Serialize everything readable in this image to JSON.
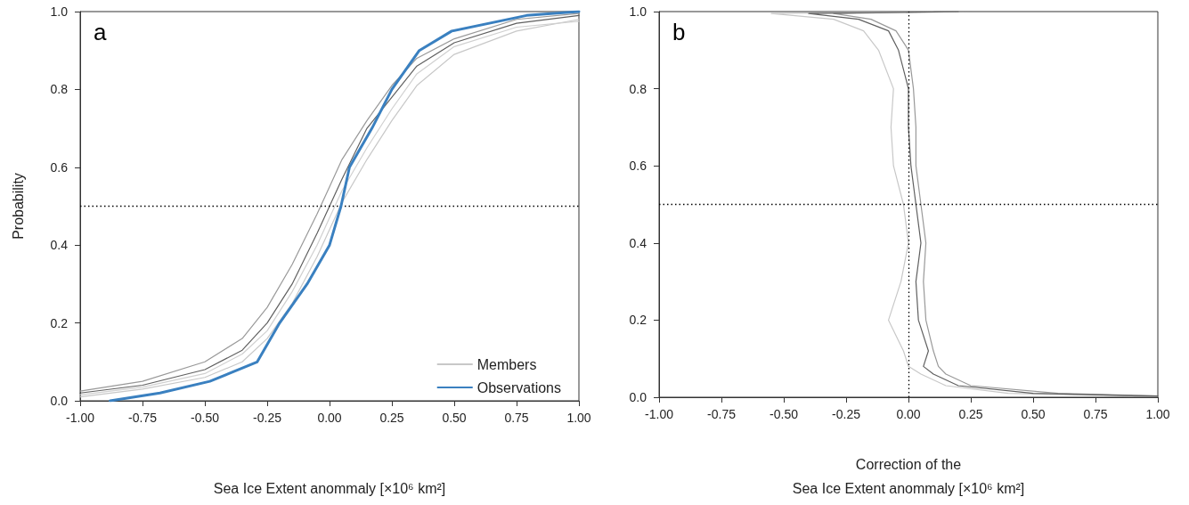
{
  "chart_data": [
    {
      "type": "line",
      "xlabel": "Sea Ice Extent anommaly [×10⁶ km²]",
      "ylabel": "Probability",
      "annotations": [
        "a"
      ],
      "legend": "bottom right",
      "grid": false,
      "marker": "none",
      "line_style": "solid",
      "xlim": [
        -1,
        1
      ],
      "xticks": [
        {
          "value": -1,
          "label": "-1.00"
        },
        {
          "value": -0.75,
          "label": "-0.75"
        },
        {
          "value": -0.5,
          "label": "-0.50"
        },
        {
          "value": -0.25,
          "label": "-0.25"
        },
        {
          "value": 0,
          "label": "0.00"
        },
        {
          "value": 0.25,
          "label": "0.25"
        },
        {
          "value": 0.5,
          "label": "0.50"
        },
        {
          "value": 0.75,
          "label": "0.75"
        },
        {
          "value": 1,
          "label": "1.00"
        }
      ],
      "ylim": [
        0,
        1
      ],
      "yticks": [
        {
          "value": 0,
          "label": "0.0"
        },
        {
          "value": 0.2,
          "label": "0.2"
        },
        {
          "value": 0.4,
          "label": "0.4"
        },
        {
          "value": 0.6,
          "label": "0.6"
        },
        {
          "value": 0.8,
          "label": "0.8"
        },
        {
          "value": 1,
          "label": "1.0"
        }
      ],
      "ref_lines": [
        {
          "axis": "y",
          "value": 0.5,
          "label": null,
          "color": "#000000",
          "line_style": "dotted"
        }
      ],
      "series": [
        {
          "name": "Members",
          "color": "#c8c8c8",
          "x": [
            -1,
            -0.75,
            -0.5,
            -0.35,
            -0.25,
            -0.15,
            -0.05,
            0,
            0.05,
            0.15,
            0.25,
            0.35,
            0.5,
            0.75,
            1
          ],
          "values": [
            0.01,
            0.03,
            0.06,
            0.1,
            0.16,
            0.25,
            0.37,
            0.44,
            0.51,
            0.62,
            0.72,
            0.81,
            0.89,
            0.95,
            0.98
          ]
        },
        {
          "color": "#d0d0d0",
          "x": [
            -1,
            -0.75,
            -0.5,
            -0.35,
            -0.25,
            -0.15,
            -0.05,
            0,
            0.05,
            0.15,
            0.25,
            0.35,
            0.5,
            0.75,
            1
          ],
          "values": [
            0.015,
            0.035,
            0.07,
            0.12,
            0.18,
            0.28,
            0.4,
            0.47,
            0.54,
            0.65,
            0.75,
            0.84,
            0.91,
            0.96,
            0.975
          ]
        },
        {
          "color": "#999999",
          "x": [
            -1,
            -0.75,
            -0.5,
            -0.35,
            -0.25,
            -0.15,
            -0.05,
            0,
            0.05,
            0.15,
            0.25,
            0.35,
            0.5,
            0.75,
            1
          ],
          "values": [
            0.025,
            0.05,
            0.1,
            0.16,
            0.24,
            0.35,
            0.48,
            0.55,
            0.62,
            0.72,
            0.81,
            0.88,
            0.93,
            0.98,
            0.995
          ]
        },
        {
          "color": "#606060",
          "x": [
            -1,
            -0.75,
            -0.5,
            -0.35,
            -0.25,
            -0.15,
            -0.05,
            0,
            0.05,
            0.15,
            0.25,
            0.35,
            0.5,
            0.75,
            1
          ],
          "values": [
            0.02,
            0.04,
            0.08,
            0.13,
            0.2,
            0.3,
            0.43,
            0.5,
            0.57,
            0.7,
            0.78,
            0.86,
            0.92,
            0.97,
            0.99
          ]
        },
        {
          "name": "Observations",
          "color": "#3a80c0",
          "x": [
            -0.88,
            -0.68,
            -0.48,
            -0.29,
            -0.2,
            -0.09,
            0,
            0.046,
            0.08,
            0.17,
            0.25,
            0.36,
            0.49,
            0.79,
            1
          ],
          "values": [
            0,
            0.02,
            0.05,
            0.1,
            0.2,
            0.3,
            0.4,
            0.5,
            0.6,
            0.7,
            0.8,
            0.9,
            0.95,
            0.99,
            1
          ]
        }
      ]
    },
    {
      "type": "line",
      "xlabel": "Correction of the\nSea Ice Extent anommaly [×10⁶ km²]",
      "annotations": [
        "b"
      ],
      "grid": false,
      "marker": "none",
      "line_style": "solid",
      "xlim": [
        -1,
        1
      ],
      "xticks": [
        {
          "value": -1,
          "label": "-1.00"
        },
        {
          "value": -0.75,
          "label": "-0.75"
        },
        {
          "value": -0.5,
          "label": "-0.50"
        },
        {
          "value": -0.25,
          "label": "-0.25"
        },
        {
          "value": 0,
          "label": "0.00"
        },
        {
          "value": 0.25,
          "label": "0.25"
        },
        {
          "value": 0.5,
          "label": "0.50"
        },
        {
          "value": 0.75,
          "label": "0.75"
        },
        {
          "value": 1,
          "label": "1.00"
        }
      ],
      "ylim": [
        0,
        1
      ],
      "yticks": [
        {
          "value": 0,
          "label": "0.0"
        },
        {
          "value": 0.2,
          "label": "0.2"
        },
        {
          "value": 0.4,
          "label": "0.4"
        },
        {
          "value": 0.6,
          "label": "0.6"
        },
        {
          "value": 0.8,
          "label": "0.8"
        },
        {
          "value": 1,
          "label": "1.0"
        }
      ],
      "ref_lines": [
        {
          "axis": "y",
          "value": 0.5,
          "label": null,
          "color": "#000000",
          "line_style": "dotted"
        },
        {
          "axis": "x",
          "value": 0,
          "label": null,
          "color": "#000000",
          "line_style": "dotted"
        }
      ],
      "series": [
        {
          "color": "#c8c8c8",
          "x": [
            0.9,
            0.4,
            0.15,
            0.05,
            0,
            -0.02,
            -0.08,
            -0.03,
            0,
            -0.02,
            -0.06,
            -0.07,
            -0.06,
            -0.12,
            -0.18,
            -0.3,
            -0.55,
            0.1
          ],
          "values": [
            0.003,
            0.01,
            0.03,
            0.06,
            0.08,
            0.12,
            0.2,
            0.3,
            0.4,
            0.5,
            0.6,
            0.7,
            0.8,
            0.9,
            0.95,
            0.98,
            0.995,
            1
          ]
        },
        {
          "color": "#999999",
          "x": [
            1,
            0.6,
            0.25,
            0.15,
            0.12,
            0.1,
            0.07,
            0.06,
            0.07,
            0.05,
            0.03,
            0.03,
            0.02,
            0,
            -0.05,
            -0.15,
            -0.3,
            0.25
          ],
          "values": [
            0.003,
            0.01,
            0.03,
            0.06,
            0.08,
            0.12,
            0.2,
            0.3,
            0.4,
            0.5,
            0.6,
            0.7,
            0.8,
            0.9,
            0.95,
            0.98,
            0.995,
            1
          ]
        },
        {
          "color": "#606060",
          "x": [
            1,
            0.5,
            0.2,
            0.1,
            0.06,
            0.08,
            0.04,
            0.03,
            0.05,
            0.03,
            0.01,
            0,
            0,
            -0.04,
            -0.08,
            -0.2,
            -0.4,
            0.2
          ],
          "values": [
            0.003,
            0.01,
            0.03,
            0.06,
            0.08,
            0.12,
            0.2,
            0.3,
            0.4,
            0.5,
            0.6,
            0.7,
            0.8,
            0.9,
            0.95,
            0.98,
            0.995,
            1
          ]
        }
      ]
    }
  ]
}
